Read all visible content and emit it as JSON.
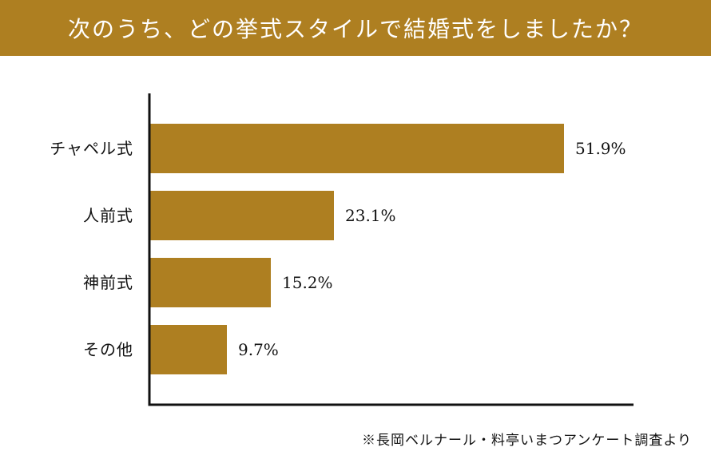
{
  "header": {
    "title": "次のうち、どの挙式スタイルで結婚式をしましたか？"
  },
  "chart_data": {
    "type": "bar",
    "orientation": "horizontal",
    "categories": [
      "チャペル式",
      "人前式",
      "神前式",
      "その他"
    ],
    "values": [
      51.9,
      23.1,
      15.2,
      9.7
    ],
    "value_labels": [
      "51.9%",
      "23.1%",
      "15.2%",
      "9.7%"
    ],
    "title": "",
    "xlabel": "",
    "ylabel": "",
    "xlim": [
      0,
      60
    ],
    "grid": false,
    "legend": "none",
    "bar_color": "#ae7f21"
  },
  "footer": {
    "source": "※長岡ベルナール・料亭いまつアンケート調査より"
  },
  "colors": {
    "accent": "#ae7f21",
    "text": "#111111",
    "axis": "#111111"
  }
}
